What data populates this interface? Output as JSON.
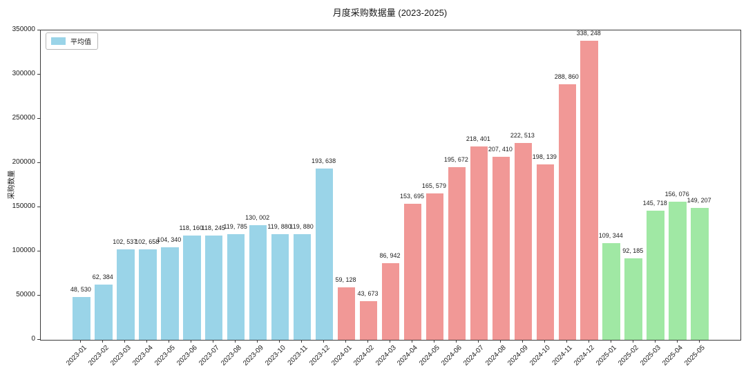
{
  "legend": {
    "label": "平均值",
    "swatch_color": "#9AD4E8"
  },
  "colors": {
    "bars_2023": "#9AD4E8",
    "bars_2024": "#F19896",
    "bars_2025": "#A0E8A4",
    "axis": "#3a3a3a",
    "text": "#1a1a1a"
  },
  "chart_data": {
    "type": "bar",
    "title": "月度采购数据量 (2023-2025)",
    "xlabel": "",
    "ylabel": "采购数量",
    "grid": false,
    "legend_entries": [
      "平均值"
    ],
    "legend_position": "upper-left",
    "ylim": [
      0,
      350000
    ],
    "yticks": [
      0,
      50000,
      100000,
      150000,
      200000,
      250000,
      300000,
      350000
    ],
    "value_label_format": "thousands comma+space, e.g. 48, 530",
    "bar_color_by_year": {
      "2023": "#9AD4E8",
      "2024": "#F19896",
      "2025": "#A0E8A4"
    },
    "categories": [
      "2023-01",
      "2023-02",
      "2023-03",
      "2023-04",
      "2023-05",
      "2023-06",
      "2023-07",
      "2023-08",
      "2023-09",
      "2023-10",
      "2023-11",
      "2023-12",
      "2024-01",
      "2024-02",
      "2024-03",
      "2024-04",
      "2024-05",
      "2024-06",
      "2024-07",
      "2024-08",
      "2024-09",
      "2024-10",
      "2024-11",
      "2024-12",
      "2025-01",
      "2025-02",
      "2025-03",
      "2025-04",
      "2025-05"
    ],
    "values": [
      48530,
      62384,
      102537,
      102658,
      104340,
      118160,
      118245,
      119785,
      130002,
      119880,
      119880,
      193638,
      59128,
      43673,
      86942,
      153695,
      165579,
      195672,
      218401,
      207410,
      222513,
      198139,
      288860,
      338248,
      109344,
      92185,
      145718,
      156076,
      149207
    ]
  }
}
